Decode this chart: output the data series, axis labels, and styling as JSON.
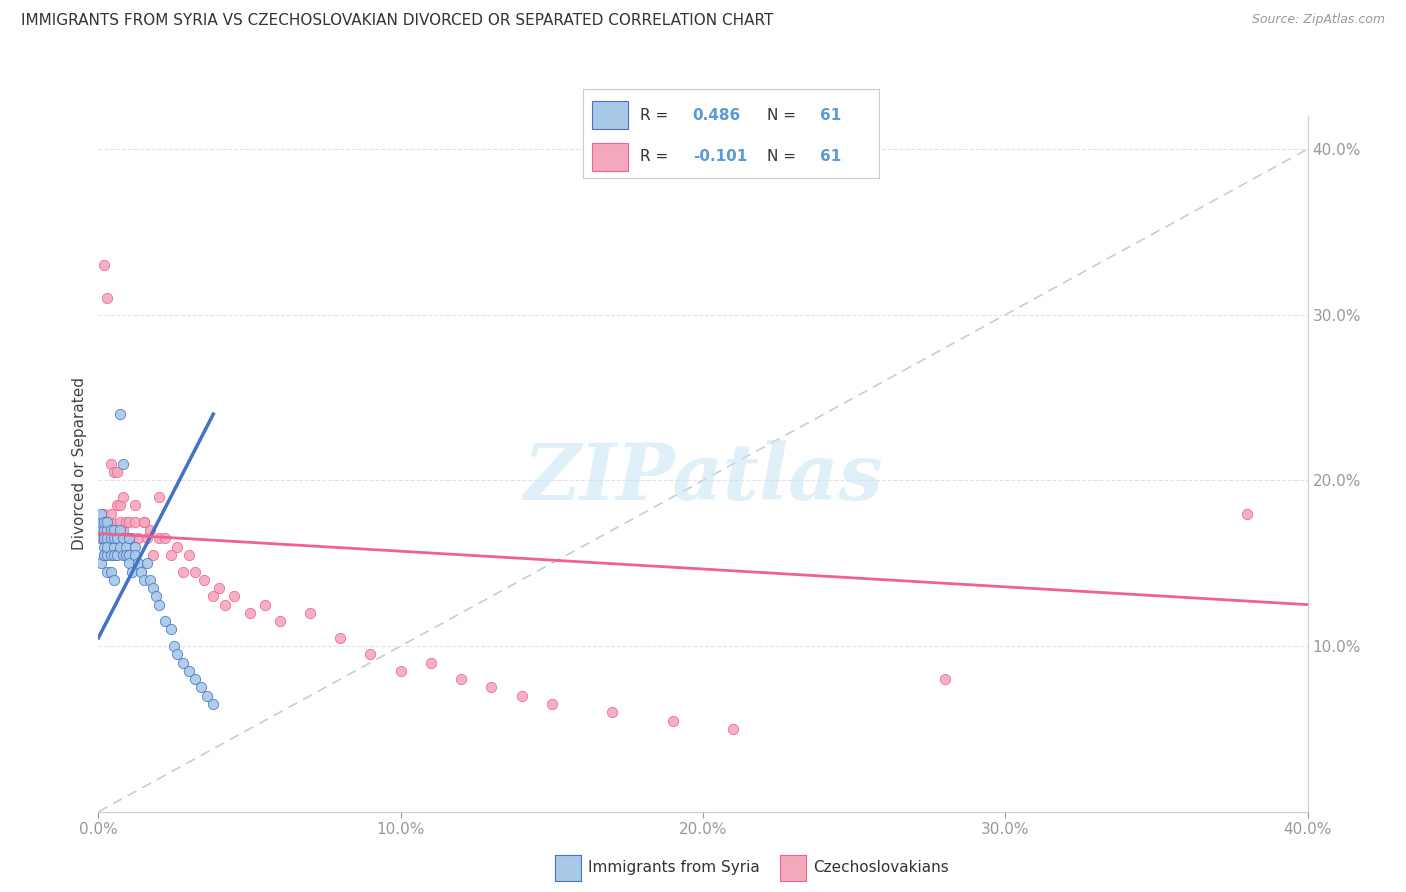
{
  "title": "IMMIGRANTS FROM SYRIA VS CZECHOSLOVAKIAN DIVORCED OR SEPARATED CORRELATION CHART",
  "source": "Source: ZipAtlas.com",
  "ylabel_label": "Divorced or Separated",
  "legend_label1": "Immigrants from Syria",
  "legend_label2": "Czechoslovakians",
  "color_syria": "#a8c8e8",
  "color_czech": "#f4a8bc",
  "color_syria_dark": "#4472c4",
  "color_czech_dark": "#f06090",
  "color_diag": "#c0c8d0",
  "watermark": "ZIPatlas",
  "syria_x": [
    0.001,
    0.001,
    0.001,
    0.001,
    0.001,
    0.002,
    0.002,
    0.002,
    0.002,
    0.002,
    0.002,
    0.002,
    0.003,
    0.003,
    0.003,
    0.003,
    0.003,
    0.003,
    0.004,
    0.004,
    0.004,
    0.004,
    0.005,
    0.005,
    0.005,
    0.005,
    0.005,
    0.006,
    0.006,
    0.007,
    0.007,
    0.007,
    0.008,
    0.008,
    0.008,
    0.009,
    0.009,
    0.01,
    0.01,
    0.01,
    0.011,
    0.012,
    0.012,
    0.013,
    0.014,
    0.015,
    0.016,
    0.017,
    0.018,
    0.019,
    0.02,
    0.022,
    0.024,
    0.025,
    0.026,
    0.028,
    0.03,
    0.032,
    0.034,
    0.036,
    0.038
  ],
  "syria_y": [
    0.165,
    0.17,
    0.175,
    0.18,
    0.15,
    0.165,
    0.16,
    0.17,
    0.175,
    0.155,
    0.165,
    0.155,
    0.17,
    0.175,
    0.165,
    0.155,
    0.145,
    0.16,
    0.17,
    0.155,
    0.165,
    0.145,
    0.16,
    0.165,
    0.155,
    0.14,
    0.17,
    0.165,
    0.155,
    0.16,
    0.17,
    0.24,
    0.165,
    0.155,
    0.21,
    0.16,
    0.155,
    0.155,
    0.165,
    0.15,
    0.145,
    0.16,
    0.155,
    0.15,
    0.145,
    0.14,
    0.15,
    0.14,
    0.135,
    0.13,
    0.125,
    0.115,
    0.11,
    0.1,
    0.095,
    0.09,
    0.085,
    0.08,
    0.075,
    0.07,
    0.065
  ],
  "czech_x": [
    0.001,
    0.001,
    0.002,
    0.002,
    0.003,
    0.003,
    0.004,
    0.004,
    0.005,
    0.006,
    0.007,
    0.007,
    0.008,
    0.009,
    0.01,
    0.01,
    0.011,
    0.012,
    0.013,
    0.015,
    0.016,
    0.017,
    0.018,
    0.02,
    0.022,
    0.024,
    0.026,
    0.028,
    0.03,
    0.032,
    0.035,
    0.038,
    0.04,
    0.042,
    0.045,
    0.05,
    0.055,
    0.06,
    0.07,
    0.08,
    0.09,
    0.1,
    0.11,
    0.12,
    0.13,
    0.14,
    0.15,
    0.17,
    0.19,
    0.21,
    0.002,
    0.003,
    0.004,
    0.005,
    0.006,
    0.008,
    0.012,
    0.015,
    0.02,
    0.38,
    0.28
  ],
  "czech_y": [
    0.175,
    0.165,
    0.18,
    0.165,
    0.175,
    0.165,
    0.175,
    0.18,
    0.17,
    0.185,
    0.175,
    0.185,
    0.17,
    0.175,
    0.165,
    0.175,
    0.165,
    0.175,
    0.165,
    0.175,
    0.165,
    0.17,
    0.155,
    0.165,
    0.165,
    0.155,
    0.16,
    0.145,
    0.155,
    0.145,
    0.14,
    0.13,
    0.135,
    0.125,
    0.13,
    0.12,
    0.125,
    0.115,
    0.12,
    0.105,
    0.095,
    0.085,
    0.09,
    0.08,
    0.075,
    0.07,
    0.065,
    0.06,
    0.055,
    0.05,
    0.33,
    0.31,
    0.21,
    0.205,
    0.205,
    0.19,
    0.185,
    0.175,
    0.19,
    0.18,
    0.08
  ],
  "xlim": [
    0.0,
    0.4
  ],
  "ylim": [
    0.0,
    0.42
  ],
  "xticks": [
    0.0,
    0.1,
    0.2,
    0.3,
    0.4
  ],
  "yticks": [
    0.1,
    0.2,
    0.3,
    0.4
  ],
  "xtick_labels": [
    "0.0%",
    "10.0%",
    "20.0%",
    "30.0%",
    "40.0%"
  ],
  "ytick_labels": [
    "10.0%",
    "20.0%",
    "30.0%",
    "40.0%"
  ],
  "syria_line_x0": 0.0,
  "syria_line_x1": 0.038,
  "syria_line_y0": 0.105,
  "syria_line_y1": 0.24,
  "czech_line_x0": 0.0,
  "czech_line_x1": 0.4,
  "czech_line_y0": 0.168,
  "czech_line_y1": 0.125
}
